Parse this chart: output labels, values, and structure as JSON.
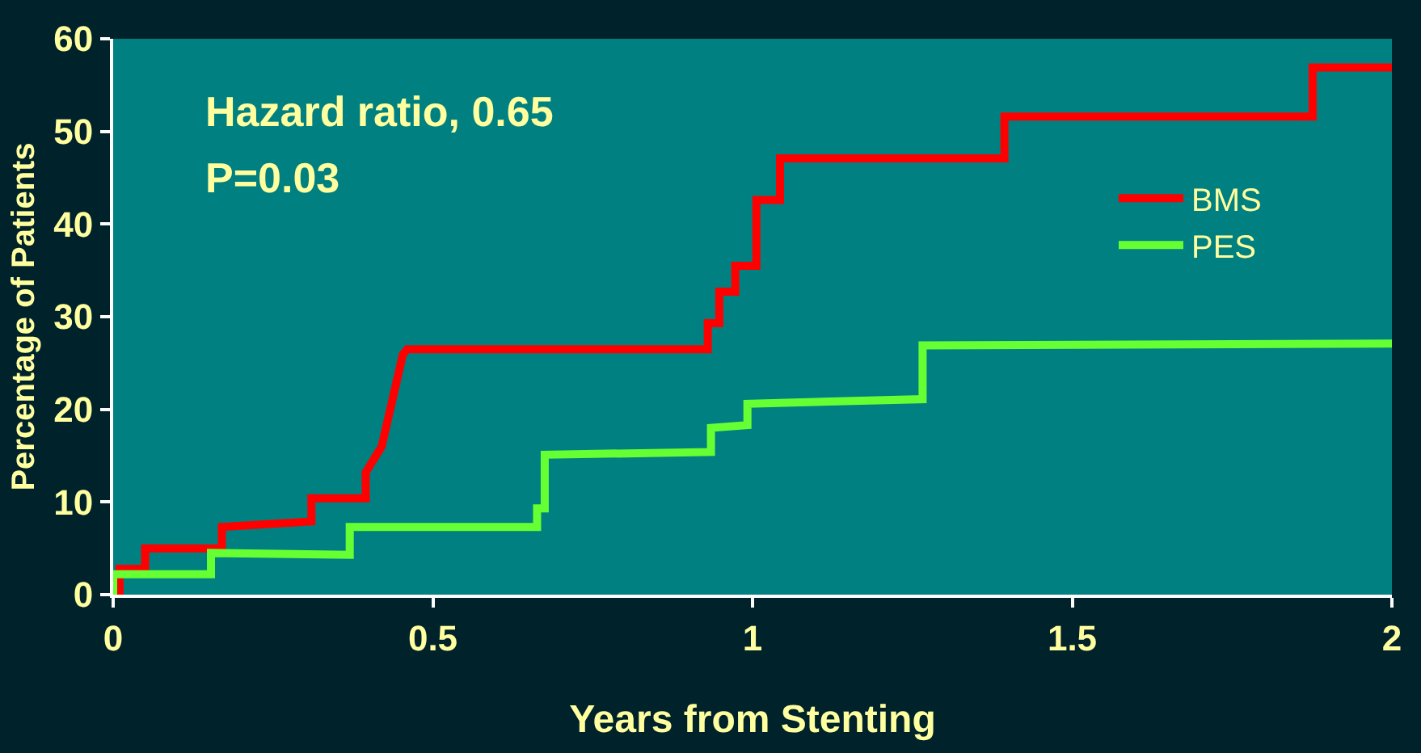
{
  "chart_data": {
    "type": "line",
    "xlabel": "Years from Stenting",
    "ylabel": "Percentage of Patients",
    "xlim": [
      0,
      2
    ],
    "xticks": [
      0,
      0.5,
      1,
      1.5,
      2
    ],
    "ylim": [
      0,
      60
    ],
    "yticks": [
      0,
      10,
      20,
      30,
      40,
      50,
      60
    ],
    "grid": false,
    "legend": "top right",
    "marker": "none",
    "line_style": "solid",
    "annotations": [
      "Hazard ratio, 0.65",
      "P=0.03"
    ],
    "series": [
      {
        "name": "BMS",
        "color": "#ff0000",
        "x": [
          0.01,
          0.01,
          0.05,
          0.05,
          0.17,
          0.17,
          0.31,
          0.31,
          0.395,
          0.395,
          0.42,
          0.453,
          0.46,
          0.93,
          0.93,
          0.948,
          0.948,
          0.973,
          0.973,
          1.006,
          1.006,
          1.043,
          1.043,
          1.394,
          1.394,
          1.876,
          1.876,
          2
        ],
        "values": [
          0,
          2.8,
          2.8,
          5.0,
          5.0,
          7.3,
          7.9,
          10.4,
          10.4,
          13.2,
          16.0,
          25.9,
          26.5,
          26.5,
          29.3,
          29.3,
          32.7,
          32.7,
          35.5,
          35.5,
          42.6,
          42.6,
          47.1,
          47.1,
          51.6,
          51.6,
          56.9,
          56.9
        ]
      },
      {
        "name": "PES",
        "color": "#66ff33",
        "x": [
          0,
          0,
          0.153,
          0.153,
          0.37,
          0.37,
          0.663,
          0.663,
          0.675,
          0.675,
          0.935,
          0.935,
          0.992,
          0.992,
          1.266,
          1.266,
          2
        ],
        "values": [
          0,
          2.2,
          2.2,
          4.5,
          4.3,
          7.3,
          7.3,
          9.3,
          9.3,
          15.1,
          15.4,
          18.0,
          18.3,
          20.6,
          21.1,
          26.9,
          27.1
        ]
      }
    ]
  }
}
